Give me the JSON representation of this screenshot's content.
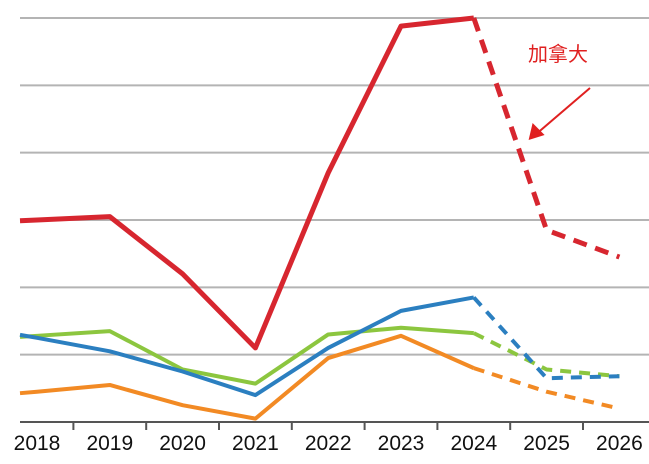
{
  "chart_data": {
    "type": "line",
    "x": [
      "2018",
      "2019",
      "2020",
      "2021",
      "2022",
      "2023",
      "2024",
      "2025",
      "2026"
    ],
    "forecast_from_index": 6,
    "ylim": [
      0,
      6
    ],
    "grid": true,
    "series": [
      {
        "color": "#d7262f",
        "values": [
          3.0,
          3.05,
          2.2,
          1.1,
          3.7,
          5.88,
          6.0,
          2.85,
          2.45
        ]
      },
      {
        "color": "#2b7fc0",
        "values": [
          1.25,
          1.05,
          0.75,
          0.4,
          1.1,
          1.65,
          1.85,
          0.65,
          0.68
        ]
      },
      {
        "color": "#8cc63f",
        "values": [
          1.28,
          1.35,
          0.78,
          0.57,
          1.3,
          1.4,
          1.32,
          0.78,
          0.68
        ]
      },
      {
        "color": "#f28a24",
        "values": [
          0.45,
          0.55,
          0.25,
          0.05,
          0.95,
          1.28,
          0.8,
          0.45,
          0.2
        ]
      }
    ],
    "annotation": {
      "text": "加拿大",
      "color": "#e02020",
      "target_series": 0,
      "target_index": 7
    }
  }
}
